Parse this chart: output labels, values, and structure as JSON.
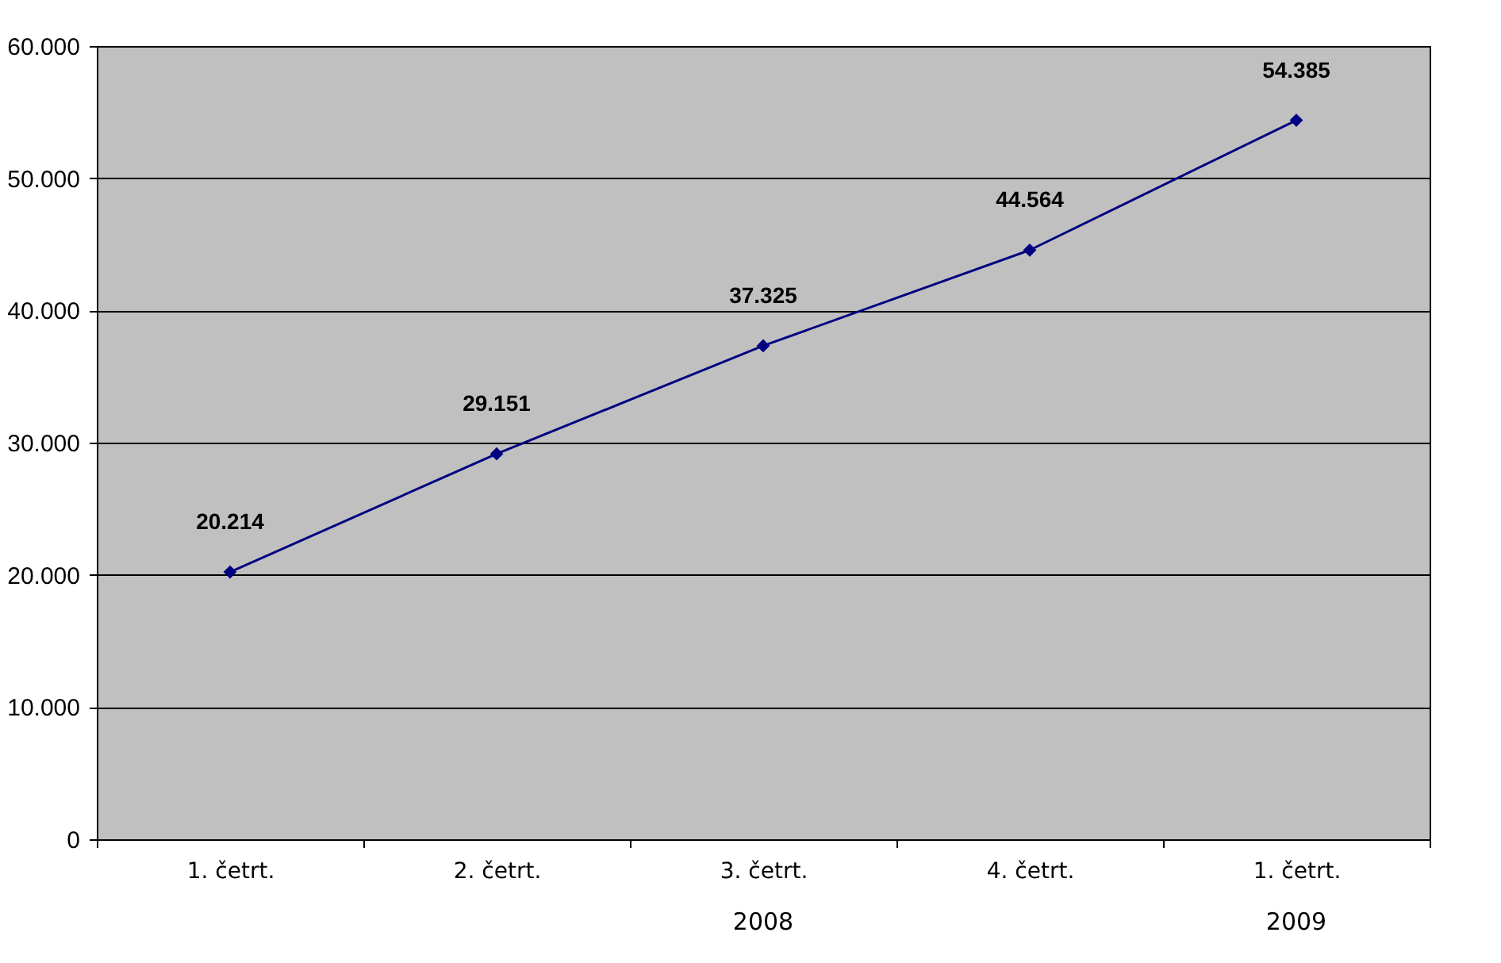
{
  "chart_data": {
    "type": "line",
    "categories": [
      "1. četrt.",
      "2. četrt.",
      "3. četrt.",
      "4. četrt.",
      "1. četrt."
    ],
    "series": [
      {
        "color": "#000080",
        "values": [
          20214,
          29151,
          37325,
          44564,
          54385
        ],
        "value_labels": [
          "20.214",
          "29.151",
          "37.325",
          "44.564",
          "54.385"
        ]
      }
    ],
    "ylim": [
      0,
      60000
    ],
    "yticks": [
      {
        "value": 0,
        "label": "0"
      },
      {
        "value": 10000,
        "label": "10.000"
      },
      {
        "value": 20000,
        "label": "20.000"
      },
      {
        "value": 30000,
        "label": "30.000"
      },
      {
        "value": 40000,
        "label": "40.000"
      },
      {
        "value": 50000,
        "label": "50.000"
      },
      {
        "value": 60000,
        "label": "60.000"
      }
    ],
    "annotations": [
      "2008",
      "2009"
    ],
    "grid": "y",
    "marker": "diamond",
    "line_style": "solid"
  }
}
